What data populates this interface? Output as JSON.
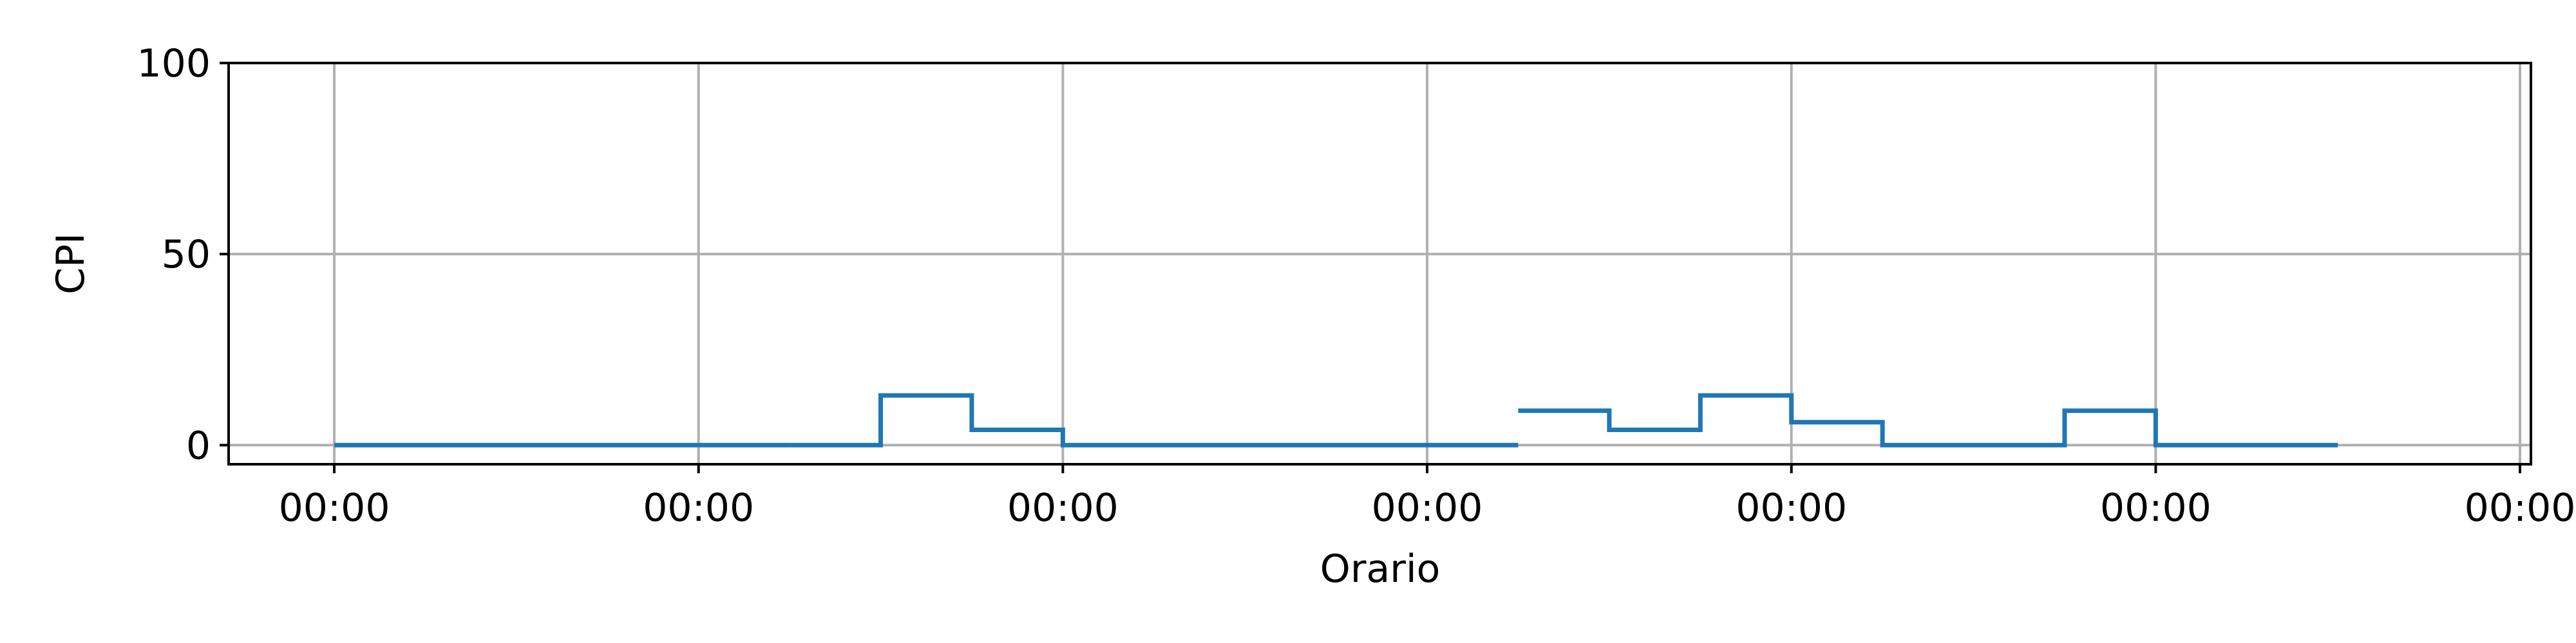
{
  "chart_data": {
    "type": "line",
    "step": true,
    "xlabel": "Orario",
    "ylabel": "CPI",
    "ylim": [
      0,
      100
    ],
    "xlim": [
      -0.29,
      6.03
    ],
    "grid": true,
    "x_ticks": [
      {
        "value": 0,
        "label": "00:00"
      },
      {
        "value": 1,
        "label": "00:00"
      },
      {
        "value": 2,
        "label": "00:00"
      },
      {
        "value": 3,
        "label": "00:00"
      },
      {
        "value": 4,
        "label": "00:00"
      },
      {
        "value": 5,
        "label": "00:00"
      },
      {
        "value": 6,
        "label": "00:00"
      }
    ],
    "y_ticks": [
      {
        "value": 0,
        "label": "0"
      },
      {
        "value": 50,
        "label": "50"
      },
      {
        "value": 100,
        "label": "100"
      }
    ],
    "series": [
      {
        "color": "#1f77b4",
        "segments": [
          {
            "x": [
              0,
              0.25,
              0.5,
              0.75,
              1.0
            ],
            "y": [
              0,
              0,
              0,
              0,
              0
            ]
          },
          {
            "x": [
              1.25,
              1.5,
              1.75,
              2.0,
              2.25,
              2.5,
              2.75,
              3.0
            ],
            "y": [
              0,
              13,
              4,
              0,
              0,
              0,
              0,
              0
            ]
          },
          {
            "x": [
              3.25,
              3.5,
              3.75,
              4.0,
              4.25,
              4.5,
              4.75,
              5.0,
              5.25
            ],
            "y": [
              9,
              4,
              13,
              6,
              0,
              0,
              9,
              0,
              0
            ]
          }
        ]
      }
    ]
  }
}
